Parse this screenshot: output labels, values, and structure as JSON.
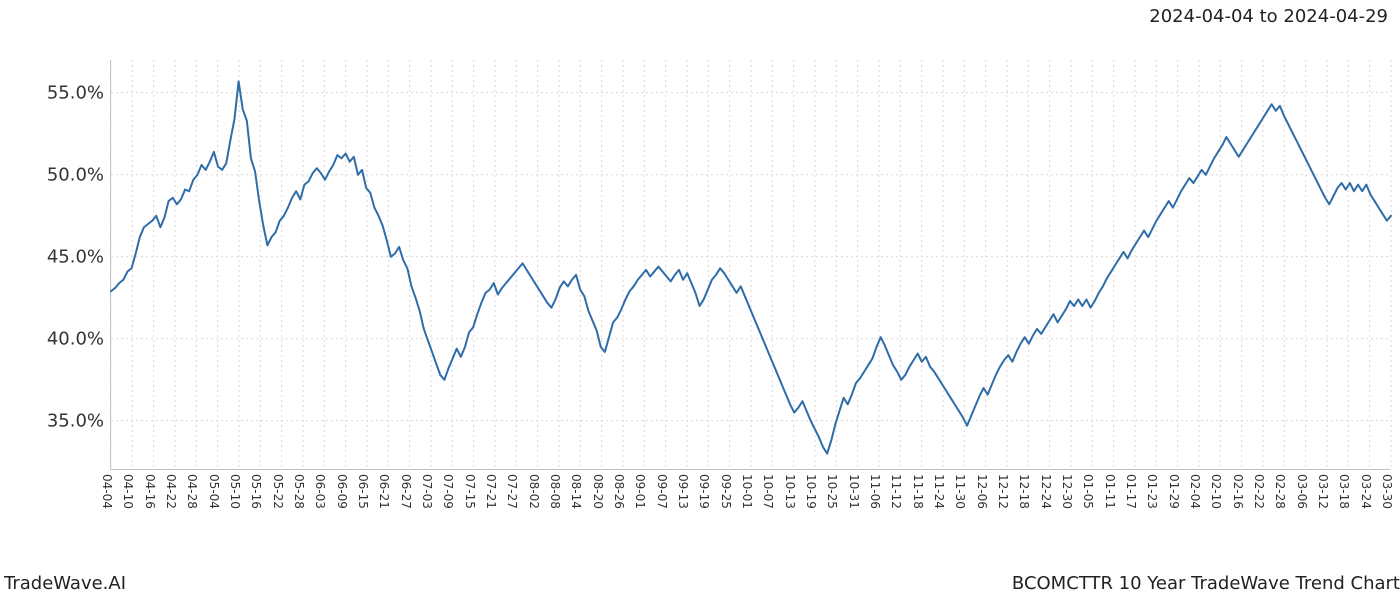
{
  "date_range_label": "2024-04-04 to 2024-04-29",
  "footer_left": "TradeWave.AI",
  "footer_right": "BCOMCTTR 10 Year TradeWave Trend Chart",
  "chart": {
    "type": "line",
    "background_color": "#ffffff",
    "grid_color": "#d9d9d9",
    "grid_dash": "2,3",
    "axis_color": "#bfbfbf",
    "line_color": "#2f6da8",
    "line_width": 2.0,
    "highlight_fill": "#d9ead3",
    "highlight_opacity": 0.55,
    "highlight_range": [
      "04-04",
      "04-29"
    ],
    "ylim": [
      32,
      57
    ],
    "yticks": [
      35.0,
      40.0,
      45.0,
      50.0,
      55.0
    ],
    "ytick_labels": [
      "35.0%",
      "40.0%",
      "45.0%",
      "50.0%",
      "55.0%"
    ],
    "ytick_fontsize": 18,
    "xtick_fontsize": 12,
    "xtick_rotation": 90,
    "x_labels": [
      "04-04",
      "04-10",
      "04-16",
      "04-22",
      "04-28",
      "05-04",
      "05-10",
      "05-16",
      "05-22",
      "05-28",
      "06-03",
      "06-09",
      "06-15",
      "06-21",
      "06-27",
      "07-03",
      "07-09",
      "07-15",
      "07-21",
      "07-27",
      "08-02",
      "08-08",
      "08-14",
      "08-20",
      "08-26",
      "09-01",
      "09-07",
      "09-13",
      "09-19",
      "09-25",
      "10-01",
      "10-07",
      "10-13",
      "10-19",
      "10-25",
      "10-31",
      "11-06",
      "11-12",
      "11-18",
      "11-24",
      "11-30",
      "12-06",
      "12-12",
      "12-18",
      "12-24",
      "12-30",
      "01-05",
      "01-11",
      "01-17",
      "01-23",
      "01-29",
      "02-04",
      "02-10",
      "02-16",
      "02-22",
      "02-28",
      "03-06",
      "03-12",
      "03-18",
      "03-24",
      "03-30"
    ],
    "series": [
      42.9,
      43.1,
      43.4,
      43.6,
      44.1,
      44.3,
      45.2,
      46.2,
      46.8,
      47.0,
      47.2,
      47.5,
      46.8,
      47.4,
      48.4,
      48.6,
      48.2,
      48.5,
      49.1,
      49.0,
      49.7,
      50.0,
      50.6,
      50.3,
      50.8,
      51.4,
      50.5,
      50.3,
      50.7,
      52.1,
      53.4,
      55.7,
      54.0,
      53.3,
      51.0,
      50.2,
      48.4,
      46.9,
      45.7,
      46.2,
      46.5,
      47.2,
      47.5,
      48.0,
      48.6,
      49.0,
      48.5,
      49.4,
      49.6,
      50.1,
      50.4,
      50.1,
      49.7,
      50.2,
      50.6,
      51.2,
      51.0,
      51.3,
      50.8,
      51.1,
      50.0,
      50.3,
      49.2,
      48.9,
      48.0,
      47.5,
      46.9,
      46.0,
      45.0,
      45.2,
      45.6,
      44.8,
      44.3,
      43.2,
      42.5,
      41.7,
      40.6,
      39.9,
      39.2,
      38.5,
      37.8,
      37.5,
      38.2,
      38.8,
      39.4,
      38.9,
      39.5,
      40.4,
      40.7,
      41.5,
      42.2,
      42.8,
      43.0,
      43.4,
      42.7,
      43.1,
      43.4,
      43.7,
      44.0,
      44.3,
      44.6,
      44.2,
      43.8,
      43.4,
      43.0,
      42.6,
      42.2,
      41.9,
      42.4,
      43.1,
      43.5,
      43.2,
      43.6,
      43.9,
      43.0,
      42.6,
      41.7,
      41.1,
      40.5,
      39.5,
      39.2,
      40.1,
      41.0,
      41.3,
      41.8,
      42.4,
      42.9,
      43.2,
      43.6,
      43.9,
      44.2,
      43.8,
      44.1,
      44.4,
      44.1,
      43.8,
      43.5,
      43.9,
      44.2,
      43.6,
      44.0,
      43.4,
      42.8,
      42.0,
      42.4,
      43.0,
      43.6,
      43.9,
      44.3,
      44.0,
      43.6,
      43.2,
      42.8,
      43.2,
      42.6,
      42.0,
      41.4,
      40.8,
      40.2,
      39.6,
      39.0,
      38.4,
      37.8,
      37.2,
      36.6,
      36.0,
      35.5,
      35.8,
      36.2,
      35.6,
      35.0,
      34.5,
      34.0,
      33.4,
      33.0,
      33.8,
      34.8,
      35.6,
      36.4,
      36.0,
      36.6,
      37.3,
      37.6,
      38.0,
      38.4,
      38.8,
      39.5,
      40.1,
      39.6,
      39.0,
      38.4,
      38.0,
      37.5,
      37.8,
      38.3,
      38.7,
      39.1,
      38.6,
      38.9,
      38.3,
      38.0,
      37.6,
      37.2,
      36.8,
      36.4,
      36.0,
      35.6,
      35.2,
      34.7,
      35.3,
      35.9,
      36.5,
      37.0,
      36.6,
      37.2,
      37.8,
      38.3,
      38.7,
      39.0,
      38.6,
      39.2,
      39.7,
      40.1,
      39.7,
      40.2,
      40.6,
      40.3,
      40.7,
      41.1,
      41.5,
      41.0,
      41.4,
      41.8,
      42.3,
      42.0,
      42.4,
      42.0,
      42.4,
      41.9,
      42.3,
      42.8,
      43.2,
      43.7,
      44.1,
      44.5,
      44.9,
      45.3,
      44.9,
      45.4,
      45.8,
      46.2,
      46.6,
      46.2,
      46.7,
      47.2,
      47.6,
      48.0,
      48.4,
      48.0,
      48.5,
      49.0,
      49.4,
      49.8,
      49.5,
      49.9,
      50.3,
      50.0,
      50.5,
      51.0,
      51.4,
      51.8,
      52.3,
      51.9,
      51.5,
      51.1,
      51.5,
      51.9,
      52.3,
      52.7,
      53.1,
      53.5,
      53.9,
      54.3,
      53.9,
      54.2,
      53.6,
      53.1,
      52.6,
      52.1,
      51.6,
      51.1,
      50.6,
      50.1,
      49.6,
      49.1,
      48.6,
      48.2,
      48.7,
      49.2,
      49.5,
      49.1,
      49.5,
      49.0,
      49.4,
      49.0,
      49.4,
      48.8,
      48.4,
      48.0,
      47.6,
      47.2,
      47.5
    ],
    "title_fontsize": 18
  }
}
